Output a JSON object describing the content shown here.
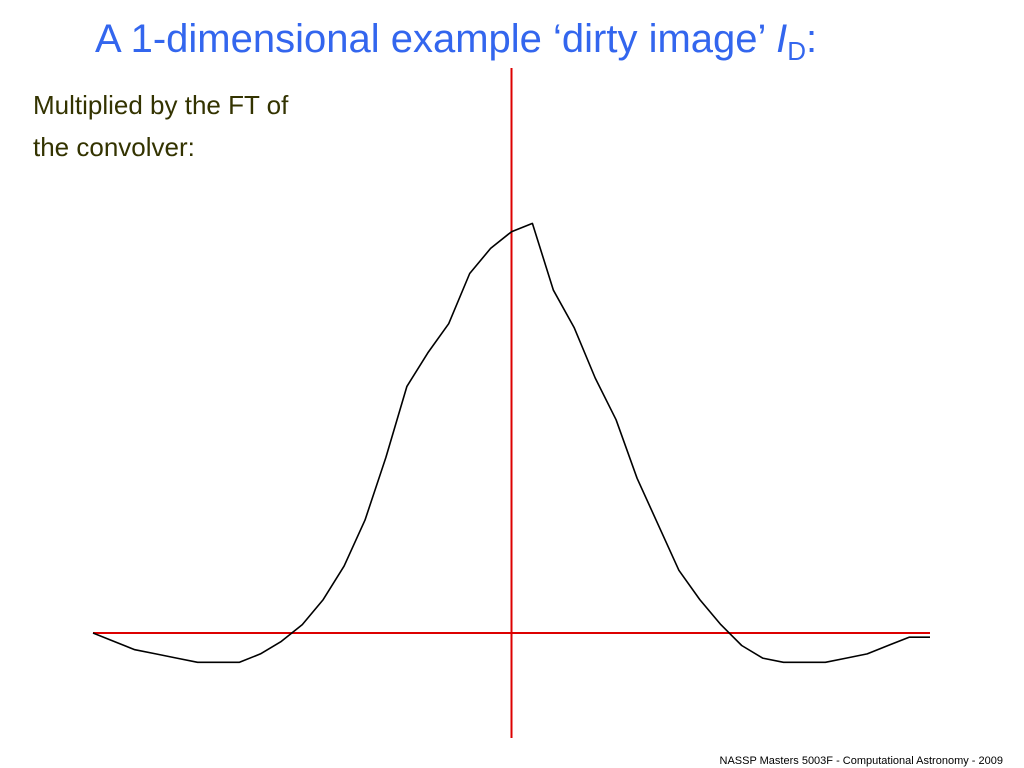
{
  "chart_data": {
    "type": "line",
    "title": "A 1-dimensional example ‘dirty image’ ",
    "title_symbol": "I",
    "title_subscript": "D",
    "title_suffix": ":",
    "subtitle_lines": [
      "Multiplied by the FT of",
      "the convolver:"
    ],
    "footer": "NASSP Masters 5003F - Computational Astronomy - 2009",
    "x": [
      -1,
      -0.95,
      -0.9,
      -0.85,
      -0.8,
      -0.75,
      -0.7,
      -0.65,
      -0.6,
      -0.55,
      -0.5,
      -0.45,
      -0.4,
      -0.35,
      -0.3,
      -0.25,
      -0.2,
      -0.15,
      -0.1,
      -0.05,
      0,
      0.05,
      0.1,
      0.15,
      0.2,
      0.25,
      0.3,
      0.35,
      0.4,
      0.45,
      0.5,
      0.55,
      0.6,
      0.65,
      0.7,
      0.75,
      0.8,
      0.85,
      0.9,
      0.95,
      1
    ],
    "values": [
      0,
      -0.02,
      -0.04,
      -0.05,
      -0.06,
      -0.07,
      -0.07,
      -0.07,
      -0.05,
      -0.02,
      0.02,
      0.08,
      0.16,
      0.27,
      0.42,
      0.59,
      0.67,
      0.74,
      0.86,
      0.92,
      0.96,
      0.98,
      0.82,
      0.73,
      0.61,
      0.51,
      0.37,
      0.26,
      0.15,
      0.08,
      0.02,
      -0.03,
      -0.06,
      -0.07,
      -0.07,
      -0.07,
      -0.06,
      -0.05,
      -0.03,
      -0.01,
      -0.01
    ],
    "color": "#000000",
    "axis_color": "#dd0000",
    "xlim": [
      -1,
      1
    ],
    "ylim": [
      -0.2,
      1.2
    ]
  }
}
